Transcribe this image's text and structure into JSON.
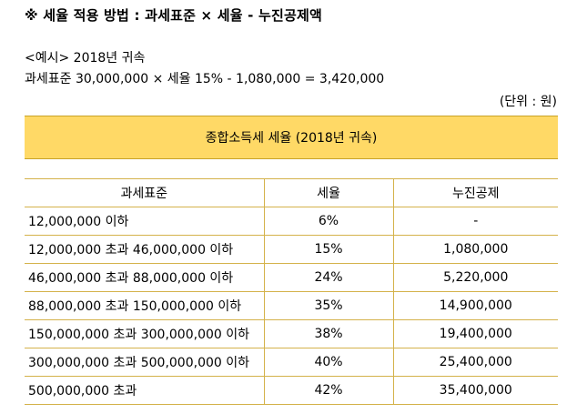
{
  "heading": "※ 세율 적용 방법 : 과세표준 × 세율 - 누진공제액",
  "example": {
    "title": "<예시> 2018년 귀속",
    "formula": "과세표준 30,000,000 × 세율 15% - 1,080,000 = 3,420,000"
  },
  "unit": "(단위 : 원)",
  "table": {
    "title": "종합소득세 세율 (2018년 귀속)",
    "columns": [
      "과세표준",
      "세율",
      "누진공제"
    ],
    "rows": [
      {
        "base": "12,000,000 이하",
        "rate": "6%",
        "deduction": "-"
      },
      {
        "base": "12,000,000 초과 46,000,000 이하",
        "rate": "15%",
        "deduction": "1,080,000"
      },
      {
        "base": "46,000,000 초과 88,000,000 이하",
        "rate": "24%",
        "deduction": "5,220,000"
      },
      {
        "base": "88,000,000 초과 150,000,000 이하",
        "rate": "35%",
        "deduction": "14,900,000"
      },
      {
        "base": "150,000,000 초과 300,000,000 이하",
        "rate": "38%",
        "deduction": "19,400,000"
      },
      {
        "base": "300,000,000 초과 500,000,000 이하",
        "rate": "40%",
        "deduction": "25,400,000"
      },
      {
        "base": "500,000,000 초과",
        "rate": "42%",
        "deduction": "35,400,000"
      }
    ]
  },
  "colors": {
    "banner_fill": "#ffd966",
    "border": "#d4b24a"
  }
}
